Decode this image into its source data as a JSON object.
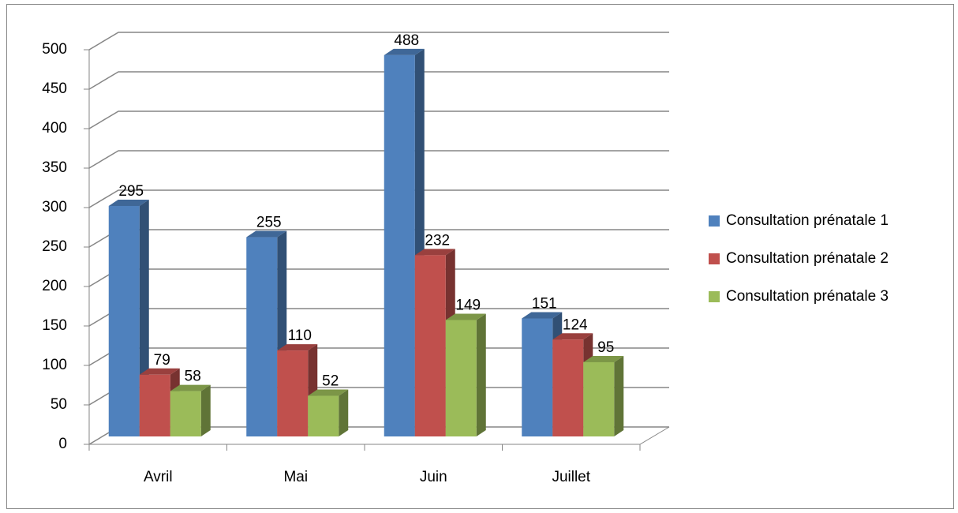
{
  "chart_data": {
    "type": "bar3d",
    "categories": [
      "Avril",
      "Mai",
      "Juin",
      "Juillet"
    ],
    "series": [
      {
        "name": "Consultation prénatale 1",
        "color": "#4f81bd",
        "values": [
          295,
          255,
          488,
          151
        ]
      },
      {
        "name": "Consultation prénatale 2",
        "color": "#c0504d",
        "values": [
          79,
          110,
          232,
          124
        ]
      },
      {
        "name": "Consultation prénatale 3",
        "color": "#9bbb59",
        "values": [
          58,
          52,
          149,
          95
        ]
      }
    ],
    "ylim": [
      0,
      500
    ],
    "yticks": [
      0,
      50,
      100,
      150,
      200,
      250,
      300,
      350,
      400,
      450,
      500
    ],
    "grid": true,
    "legend": "right"
  }
}
